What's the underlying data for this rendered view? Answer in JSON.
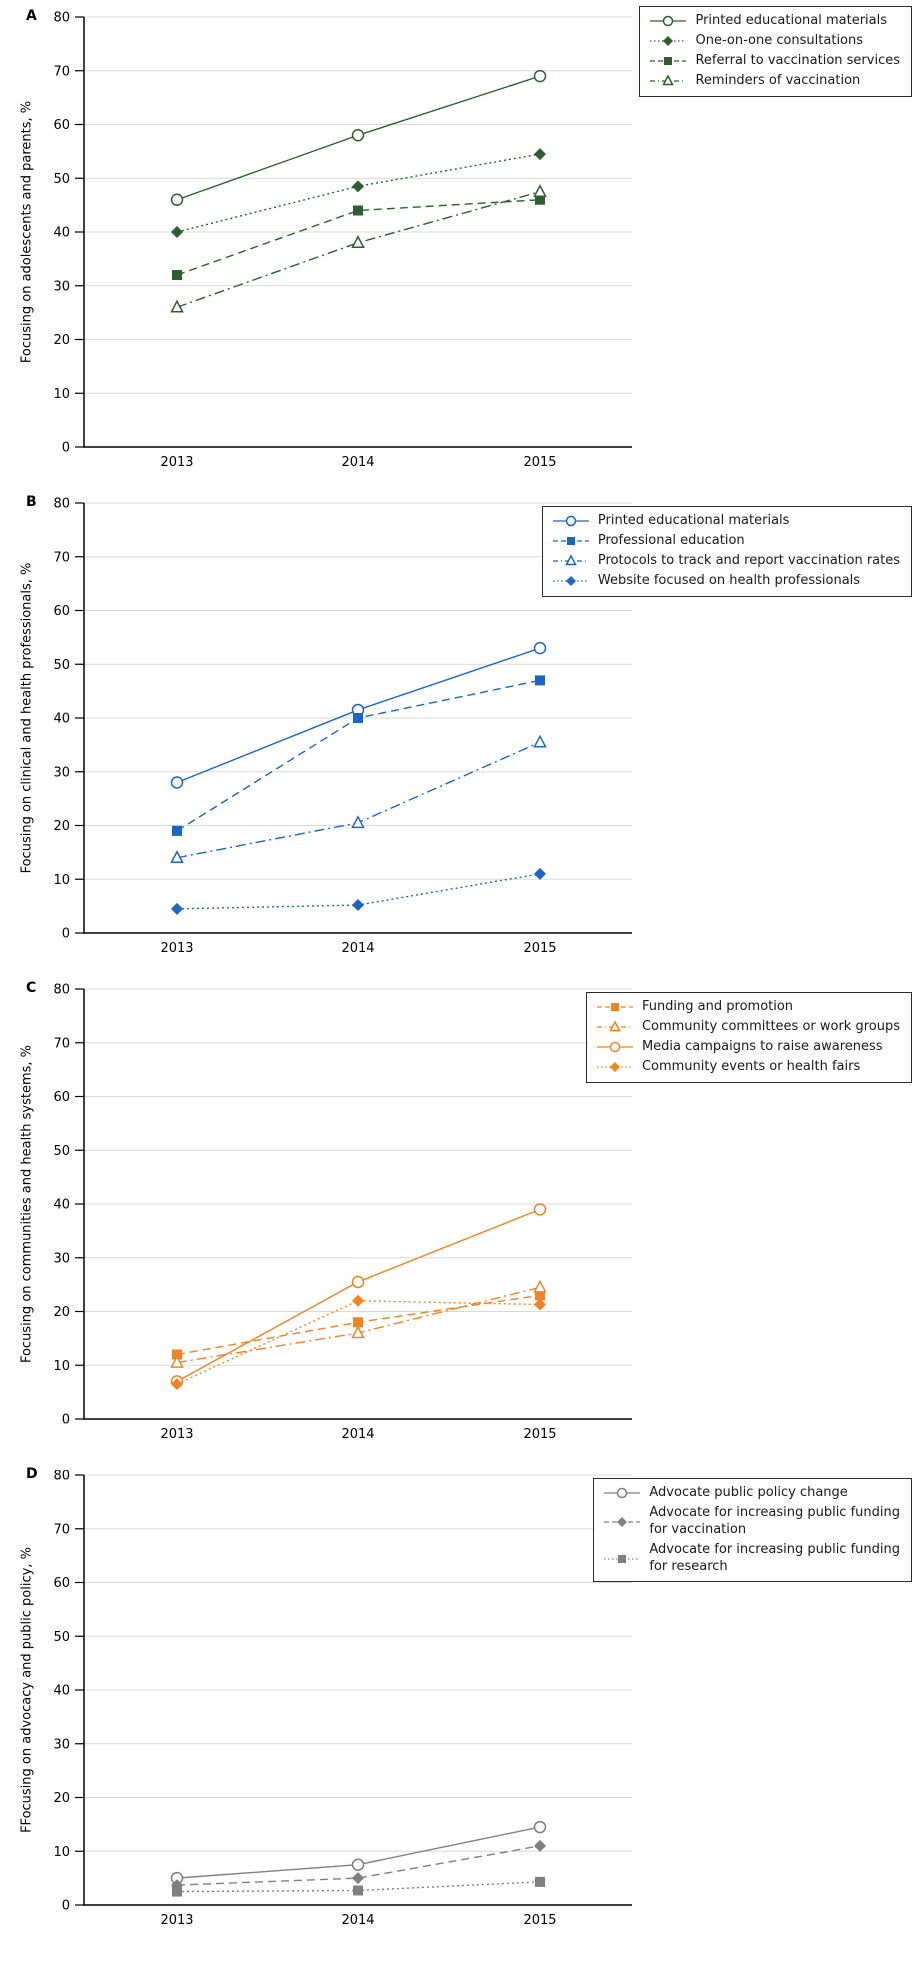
{
  "chart_data": [
    {
      "type": "line",
      "panel_label": "A",
      "ylabel": "Focusing on adolescents and parents, %",
      "xlabel": "",
      "categories": [
        "2013",
        "2014",
        "2015"
      ],
      "ylim": [
        0,
        80
      ],
      "ytick_step": 10,
      "grid": true,
      "legend_position": "top-right",
      "color": "#2e5e2f",
      "series": [
        {
          "name": "Printed educational materials",
          "line": "solid",
          "marker": "circle-open",
          "values": [
            46,
            58,
            69
          ]
        },
        {
          "name": "One-on-one consultations",
          "line": "dotted",
          "marker": "diamond-filled",
          "values": [
            40,
            48.5,
            54.5
          ]
        },
        {
          "name": "Referral to vaccination services",
          "line": "dashed",
          "marker": "square-filled",
          "values": [
            32,
            44,
            46
          ]
        },
        {
          "name": "Reminders of vaccination",
          "line": "dashdot",
          "marker": "triangle-open",
          "values": [
            26,
            38,
            47.5
          ]
        }
      ]
    },
    {
      "type": "line",
      "panel_label": "B",
      "ylabel": "Focusing on clinical and health professionals, %",
      "xlabel": "",
      "categories": [
        "2013",
        "2014",
        "2015"
      ],
      "ylim": [
        0,
        80
      ],
      "ytick_step": 10,
      "grid": true,
      "legend_position": "top-right",
      "color": "#1b64c8",
      "series": [
        {
          "name": "Printed educational materials",
          "line": "solid",
          "marker": "circle-open",
          "values": [
            28,
            41.5,
            53
          ]
        },
        {
          "name": "Professional education",
          "line": "dashed",
          "marker": "square-filled",
          "values": [
            19,
            40,
            47
          ]
        },
        {
          "name": "Protocols to track and report vaccination rates",
          "line": "dashdot",
          "marker": "triangle-open",
          "values": [
            14,
            20.5,
            35.5
          ]
        },
        {
          "name": "Website focused on health professionals",
          "line": "dotted",
          "marker": "diamond-filled",
          "values": [
            4.5,
            5.2,
            11
          ]
        }
      ]
    },
    {
      "type": "line",
      "panel_label": "C",
      "ylabel": "Focusing on communities and health systems, %",
      "xlabel": "",
      "categories": [
        "2013",
        "2014",
        "2015"
      ],
      "ylim": [
        0,
        80
      ],
      "ytick_step": 10,
      "grid": true,
      "legend_position": "top-right",
      "color": "#f28320",
      "series": [
        {
          "name": "Funding and promotion",
          "line": "dashed",
          "marker": "square-filled",
          "values": [
            12,
            18,
            23
          ]
        },
        {
          "name": "Community committees or work groups",
          "line": "dashdot",
          "marker": "triangle-open",
          "values": [
            10.5,
            16,
            24.5
          ]
        },
        {
          "name": "Media campaigns to raise awareness",
          "line": "solid",
          "marker": "circle-open",
          "values": [
            7,
            25.5,
            39
          ]
        },
        {
          "name": "Community events or health fairs",
          "line": "dotted",
          "marker": "diamond-filled",
          "values": [
            6.5,
            22,
            21.3
          ]
        }
      ]
    },
    {
      "type": "line",
      "panel_label": "D",
      "ylabel": "FFocusing on advocacy and public policy, %",
      "xlabel": "",
      "categories": [
        "2013",
        "2014",
        "2015"
      ],
      "ylim": [
        0,
        80
      ],
      "ytick_step": 10,
      "grid": true,
      "legend_position": "top-right",
      "color": "#7f7f7f",
      "series": [
        {
          "name": "Advocate public policy change",
          "line": "solid",
          "marker": "circle-open",
          "values": [
            5,
            7.5,
            14.5
          ]
        },
        {
          "name": "Advocate for increasing public funding\nfor vaccination",
          "line": "dashed",
          "marker": "diamond-filled",
          "values": [
            3.7,
            5,
            11
          ]
        },
        {
          "name": "Advocate for increasing public funding\nfor research",
          "line": "dotted",
          "marker": "square-filled",
          "values": [
            2.5,
            2.7,
            4.3
          ]
        }
      ]
    }
  ]
}
